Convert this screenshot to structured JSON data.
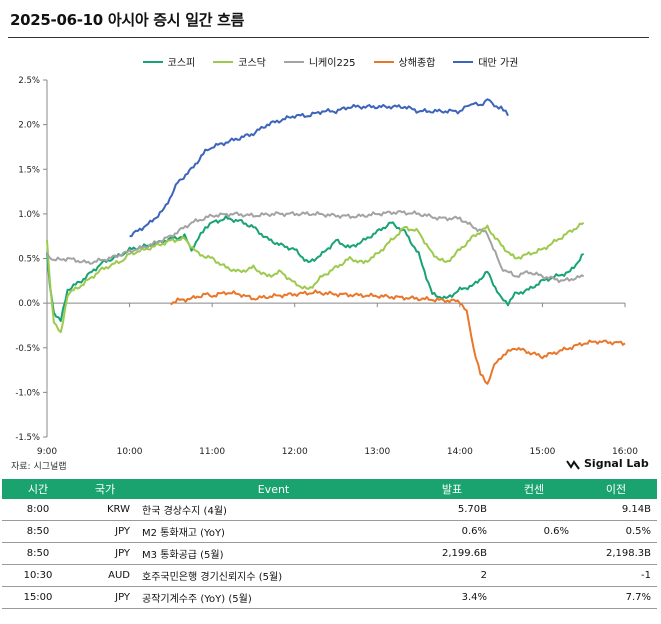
{
  "header": {
    "title": "2025-06-10 아시아 증시 일간 흐름"
  },
  "colors": {
    "kospi": "#17a374",
    "kosdaq": "#9dca4d",
    "nikkei": "#a3a3a3",
    "shanghai": "#e9772b",
    "taiwan": "#3c64bb",
    "table_header": "#1aa36e"
  },
  "chart_data": {
    "type": "line",
    "xlabel": "",
    "ylabel": "",
    "x_ticks": [
      "9:00",
      "10:00",
      "11:00",
      "12:00",
      "13:00",
      "14:00",
      "15:00",
      "16:00"
    ],
    "y_ticks": [
      "2.5%",
      "2.0%",
      "1.5%",
      "1.0%",
      "0.5%",
      "0.0%",
      "-0.5%",
      "-1.0%",
      "-1.5%"
    ],
    "ylim": [
      -1.5,
      2.5
    ],
    "xlim": [
      "9:00",
      "16:00"
    ],
    "grid": false,
    "legend_position": "top-center",
    "series": [
      {
        "name": "코스피",
        "color_key": "kospi",
        "x": [
          "9:00",
          "9:02",
          "9:05",
          "9:10",
          "9:15",
          "9:25",
          "9:40",
          "9:55",
          "10:00",
          "10:15",
          "10:30",
          "10:40",
          "10:45",
          "10:50",
          "10:55",
          "11:00",
          "11:10",
          "11:20",
          "11:30",
          "11:40",
          "11:50",
          "12:00",
          "12:10",
          "12:20",
          "12:30",
          "12:40",
          "12:50",
          "13:00",
          "13:10",
          "13:20",
          "13:30",
          "13:40",
          "13:50",
          "14:00",
          "14:10",
          "14:20",
          "14:30",
          "14:35",
          "14:40",
          "14:50",
          "15:00",
          "15:10",
          "15:20",
          "15:30"
        ],
        "y": [
          0.55,
          0.2,
          -0.1,
          -0.2,
          0.15,
          0.25,
          0.45,
          0.55,
          0.6,
          0.65,
          0.72,
          0.75,
          0.6,
          0.72,
          0.85,
          0.9,
          0.95,
          0.92,
          0.85,
          0.72,
          0.65,
          0.6,
          0.45,
          0.55,
          0.7,
          0.62,
          0.7,
          0.8,
          0.9,
          0.8,
          0.55,
          0.1,
          0.05,
          0.15,
          0.2,
          0.35,
          0.05,
          0.0,
          0.1,
          0.15,
          0.25,
          0.3,
          0.35,
          0.55
        ]
      },
      {
        "name": "코스닥",
        "color_key": "kosdaq",
        "x": [
          "9:00",
          "9:02",
          "9:05",
          "9:10",
          "9:15",
          "9:25",
          "9:40",
          "9:55",
          "10:00",
          "10:15",
          "10:30",
          "10:40",
          "10:50",
          "11:00",
          "11:10",
          "11:20",
          "11:30",
          "11:40",
          "11:50",
          "12:00",
          "12:10",
          "12:20",
          "12:30",
          "12:40",
          "12:50",
          "13:00",
          "13:10",
          "13:20",
          "13:30",
          "13:40",
          "13:50",
          "14:00",
          "14:10",
          "14:20",
          "14:30",
          "14:40",
          "14:50",
          "15:00",
          "15:10",
          "15:20",
          "15:30"
        ],
        "y": [
          0.7,
          0.25,
          -0.2,
          -0.35,
          0.1,
          0.2,
          0.38,
          0.48,
          0.55,
          0.62,
          0.7,
          0.72,
          0.55,
          0.5,
          0.4,
          0.35,
          0.4,
          0.3,
          0.35,
          0.22,
          0.15,
          0.3,
          0.4,
          0.5,
          0.45,
          0.55,
          0.7,
          0.85,
          0.8,
          0.55,
          0.45,
          0.6,
          0.75,
          0.85,
          0.65,
          0.5,
          0.55,
          0.6,
          0.7,
          0.8,
          0.9
        ]
      },
      {
        "name": "니케이225",
        "color_key": "nikkei",
        "x": [
          "9:00",
          "9:05",
          "9:15",
          "9:30",
          "9:45",
          "10:00",
          "10:15",
          "10:30",
          "10:45",
          "11:00",
          "11:15",
          "11:30",
          "11:45",
          "12:00",
          "12:15",
          "12:30",
          "12:45",
          "13:00",
          "13:15",
          "13:30",
          "13:45",
          "14:00",
          "14:10",
          "14:20",
          "14:30",
          "14:40",
          "14:50",
          "15:00",
          "15:15",
          "15:30"
        ],
        "y": [
          0.55,
          0.48,
          0.5,
          0.45,
          0.5,
          0.58,
          0.65,
          0.75,
          0.9,
          0.98,
          1.0,
          0.98,
          1.0,
          1.0,
          1.0,
          0.98,
          0.97,
          1.0,
          1.02,
          1.0,
          0.95,
          0.95,
          0.85,
          0.78,
          0.4,
          0.3,
          0.35,
          0.3,
          0.25,
          0.3
        ]
      },
      {
        "name": "상해종합",
        "color_key": "shanghai",
        "x": [
          "10:30",
          "10:35",
          "10:45",
          "10:55",
          "11:00",
          "11:10",
          "11:20",
          "11:30",
          "11:45",
          "12:00",
          "12:15",
          "12:30",
          "13:00",
          "13:30",
          "14:00",
          "14:05",
          "14:10",
          "14:15",
          "14:20",
          "14:25",
          "14:30",
          "14:35",
          "14:40",
          "14:50",
          "15:00",
          "15:10",
          "15:20",
          "15:30",
          "15:40",
          "16:00"
        ],
        "y": [
          0.0,
          0.03,
          0.05,
          0.1,
          0.08,
          0.12,
          0.1,
          0.05,
          0.08,
          0.1,
          0.12,
          0.1,
          0.08,
          0.05,
          0.02,
          -0.1,
          -0.5,
          -0.8,
          -0.9,
          -0.7,
          -0.6,
          -0.55,
          -0.5,
          -0.55,
          -0.6,
          -0.55,
          -0.5,
          -0.45,
          -0.43,
          -0.45
        ]
      },
      {
        "name": "대만 가권",
        "color_key": "taiwan",
        "x": [
          "10:00",
          "10:15",
          "10:25",
          "10:35",
          "10:45",
          "10:55",
          "11:00",
          "11:10",
          "11:20",
          "11:30",
          "11:40",
          "11:50",
          "12:00",
          "12:10",
          "12:20",
          "12:30",
          "12:40",
          "12:50",
          "13:00",
          "13:10",
          "13:20",
          "13:30",
          "13:45",
          "14:00",
          "14:05",
          "14:10",
          "14:15",
          "14:20",
          "14:25",
          "14:30",
          "14:35"
        ],
        "y": [
          0.75,
          0.9,
          1.05,
          1.35,
          1.5,
          1.7,
          1.75,
          1.8,
          1.85,
          1.9,
          2.0,
          2.05,
          2.1,
          2.1,
          2.15,
          2.15,
          2.2,
          2.2,
          2.2,
          2.2,
          2.2,
          2.15,
          2.15,
          2.15,
          2.2,
          2.25,
          2.2,
          2.3,
          2.2,
          2.2,
          2.1
        ]
      }
    ]
  },
  "source": "자료: 시그널랩",
  "brand": {
    "name": "Signal Lab"
  },
  "table": {
    "headers": [
      "시간",
      "국가",
      "Event",
      "발표",
      "컨센",
      "이전"
    ],
    "rows": [
      [
        "8:00",
        "KRW",
        "한국 경상수지 (4월)",
        "5.70B",
        "",
        "9.14B"
      ],
      [
        "8:50",
        "JPY",
        "M2 통화재고 (YoY)",
        "0.6%",
        "0.6%",
        "0.5%"
      ],
      [
        "8:50",
        "JPY",
        "M3 통화공급 (5월)",
        "2,199.6B",
        "",
        "2,198.3B"
      ],
      [
        "10:30",
        "AUD",
        "호주국민은행 경기신뢰지수 (5월)",
        "2",
        "",
        "-1"
      ],
      [
        "15:00",
        "JPY",
        "공작기계수주 (YoY) (5월)",
        "3.4%",
        "",
        "7.7%"
      ]
    ]
  }
}
